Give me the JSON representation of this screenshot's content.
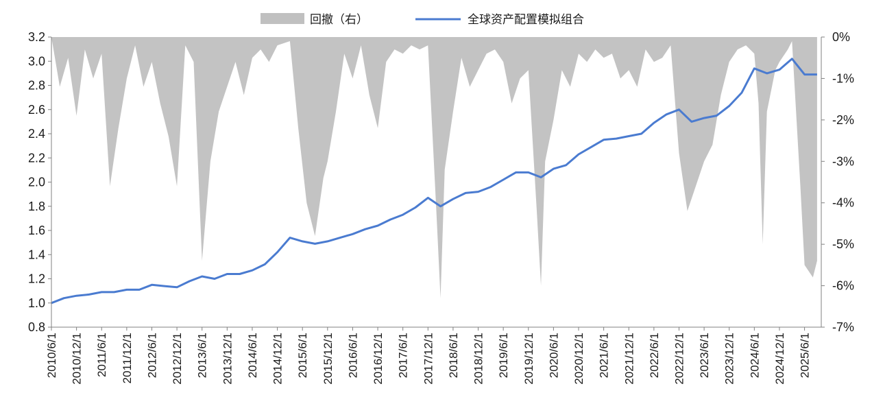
{
  "chart_data": {
    "type": "line",
    "legend": [
      {
        "name": "回撤（右）",
        "color": "#c0c0c0",
        "kind": "area"
      },
      {
        "name": "全球资产配置模拟组合",
        "color": "#4a7bd0",
        "kind": "line"
      }
    ],
    "y_left": {
      "ticks": [
        "3.2",
        "3.0",
        "2.8",
        "2.6",
        "2.4",
        "2.2",
        "2.0",
        "1.8",
        "1.6",
        "1.4",
        "1.2",
        "1.0",
        "0.8"
      ],
      "ylim": [
        0.8,
        3.2
      ]
    },
    "y_right": {
      "ticks": [
        "0%",
        "-1%",
        "-2%",
        "-3%",
        "-4%",
        "-5%",
        "-6%",
        "-7%"
      ],
      "ylim": [
        -7,
        0
      ]
    },
    "x_ticks": [
      "2010/6/1",
      "2010/12/1",
      "2011/6/1",
      "2011/12/1",
      "2012/6/1",
      "2012/12/1",
      "2013/6/1",
      "2013/12/1",
      "2014/6/1",
      "2014/12/1",
      "2015/6/1",
      "2015/12/1",
      "2016/6/1",
      "2016/12/1",
      "2017/6/1",
      "2017/12/1",
      "2018/6/1",
      "2018/12/1",
      "2019/6/1",
      "2019/12/1",
      "2020/6/1",
      "2020/12/1",
      "2021/6/1",
      "2021/12/1",
      "2022/6/1",
      "2022/12/1",
      "2023/6/1",
      "2023/12/1",
      "2024/6/1",
      "2024/12/1",
      "2025/6/1"
    ],
    "series": [
      {
        "name": "全球资产配置模拟组合",
        "axis": "left",
        "points": [
          [
            "2010/6/1",
            1.0
          ],
          [
            "2010/9/1",
            1.04
          ],
          [
            "2010/12/1",
            1.06
          ],
          [
            "2011/3/1",
            1.07
          ],
          [
            "2011/6/1",
            1.09
          ],
          [
            "2011/9/1",
            1.09
          ],
          [
            "2011/12/1",
            1.11
          ],
          [
            "2012/3/1",
            1.11
          ],
          [
            "2012/6/1",
            1.15
          ],
          [
            "2012/9/1",
            1.14
          ],
          [
            "2012/12/1",
            1.13
          ],
          [
            "2013/3/1",
            1.18
          ],
          [
            "2013/6/1",
            1.22
          ],
          [
            "2013/9/1",
            1.2
          ],
          [
            "2013/12/1",
            1.24
          ],
          [
            "2014/3/1",
            1.24
          ],
          [
            "2014/6/1",
            1.27
          ],
          [
            "2014/9/1",
            1.32
          ],
          [
            "2014/12/1",
            1.42
          ],
          [
            "2015/3/1",
            1.54
          ],
          [
            "2015/6/1",
            1.51
          ],
          [
            "2015/9/1",
            1.49
          ],
          [
            "2015/12/1",
            1.51
          ],
          [
            "2016/3/1",
            1.54
          ],
          [
            "2016/6/1",
            1.57
          ],
          [
            "2016/9/1",
            1.61
          ],
          [
            "2016/12/1",
            1.64
          ],
          [
            "2017/3/1",
            1.69
          ],
          [
            "2017/6/1",
            1.73
          ],
          [
            "2017/9/1",
            1.79
          ],
          [
            "2017/12/1",
            1.87
          ],
          [
            "2018/3/1",
            1.8
          ],
          [
            "2018/6/1",
            1.86
          ],
          [
            "2018/9/1",
            1.91
          ],
          [
            "2018/12/1",
            1.92
          ],
          [
            "2019/3/1",
            1.96
          ],
          [
            "2019/6/1",
            2.02
          ],
          [
            "2019/9/1",
            2.08
          ],
          [
            "2019/12/1",
            2.08
          ],
          [
            "2020/3/1",
            2.04
          ],
          [
            "2020/6/1",
            2.11
          ],
          [
            "2020/9/1",
            2.14
          ],
          [
            "2020/12/1",
            2.23
          ],
          [
            "2021/3/1",
            2.29
          ],
          [
            "2021/6/1",
            2.35
          ],
          [
            "2021/9/1",
            2.36
          ],
          [
            "2021/12/1",
            2.38
          ],
          [
            "2022/3/1",
            2.4
          ],
          [
            "2022/6/1",
            2.49
          ],
          [
            "2022/9/1",
            2.56
          ],
          [
            "2022/12/1",
            2.6
          ],
          [
            "2023/3/1",
            2.5
          ],
          [
            "2023/6/1",
            2.53
          ],
          [
            "2023/9/1",
            2.55
          ],
          [
            "2023/12/1",
            2.63
          ],
          [
            "2024/3/1",
            2.74
          ],
          [
            "2024/6/1",
            2.94
          ],
          [
            "2024/9/1",
            2.9
          ],
          [
            "2024/12/1",
            2.93
          ],
          [
            "2025/3/1",
            3.02
          ],
          [
            "2025/6/1",
            2.89
          ],
          [
            "2025/9/1",
            2.89
          ]
        ]
      },
      {
        "name": "回撤（右）",
        "axis": "right",
        "points": [
          [
            "2010/6/1",
            0
          ],
          [
            "2010/8/1",
            -1.2
          ],
          [
            "2010/10/1",
            -0.5
          ],
          [
            "2010/12/1",
            -1.9
          ],
          [
            "2011/2/1",
            -0.3
          ],
          [
            "2011/4/1",
            -1.0
          ],
          [
            "2011/6/1",
            -0.4
          ],
          [
            "2011/8/1",
            -3.6
          ],
          [
            "2011/10/1",
            -2.2
          ],
          [
            "2011/12/1",
            -1.0
          ],
          [
            "2012/2/1",
            -0.2
          ],
          [
            "2012/4/1",
            -1.2
          ],
          [
            "2012/6/1",
            -0.6
          ],
          [
            "2012/8/1",
            -1.6
          ],
          [
            "2012/10/1",
            -2.4
          ],
          [
            "2012/12/1",
            -3.6
          ],
          [
            "2013/2/1",
            -0.2
          ],
          [
            "2013/4/1",
            -0.6
          ],
          [
            "2013/6/1",
            -5.4
          ],
          [
            "2013/8/1",
            -3.0
          ],
          [
            "2013/10/1",
            -1.8
          ],
          [
            "2013/12/1",
            -1.2
          ],
          [
            "2014/2/1",
            -0.6
          ],
          [
            "2014/4/1",
            -1.4
          ],
          [
            "2014/6/1",
            -0.5
          ],
          [
            "2014/8/1",
            -0.3
          ],
          [
            "2014/10/1",
            -0.6
          ],
          [
            "2014/12/1",
            -0.2
          ],
          [
            "2015/3/1",
            -0.1
          ],
          [
            "2015/5/1",
            -2.2
          ],
          [
            "2015/7/1",
            -4.0
          ],
          [
            "2015/9/1",
            -4.8
          ],
          [
            "2015/11/1",
            -3.4
          ],
          [
            "2015/12/1",
            -3.0
          ],
          [
            "2016/2/1",
            -1.8
          ],
          [
            "2016/4/1",
            -0.4
          ],
          [
            "2016/6/1",
            -1.0
          ],
          [
            "2016/8/1",
            -0.2
          ],
          [
            "2016/10/1",
            -1.4
          ],
          [
            "2016/12/1",
            -2.2
          ],
          [
            "2017/2/1",
            -0.6
          ],
          [
            "2017/4/1",
            -0.3
          ],
          [
            "2017/6/1",
            -0.4
          ],
          [
            "2017/8/1",
            -0.2
          ],
          [
            "2017/10/1",
            -0.3
          ],
          [
            "2017/12/1",
            -0.2
          ],
          [
            "2018/2/1",
            -4.2
          ],
          [
            "2018/3/1",
            -6.3
          ],
          [
            "2018/4/1",
            -3.2
          ],
          [
            "2018/6/1",
            -1.8
          ],
          [
            "2018/8/1",
            -0.5
          ],
          [
            "2018/10/1",
            -1.2
          ],
          [
            "2018/12/1",
            -0.8
          ],
          [
            "2019/2/1",
            -0.4
          ],
          [
            "2019/4/1",
            -0.3
          ],
          [
            "2019/6/1",
            -0.6
          ],
          [
            "2019/8/1",
            -1.6
          ],
          [
            "2019/10/1",
            -1.0
          ],
          [
            "2019/12/1",
            -0.8
          ],
          [
            "2020/2/1",
            -4.2
          ],
          [
            "2020/3/1",
            -6.0
          ],
          [
            "2020/4/1",
            -3.0
          ],
          [
            "2020/6/1",
            -2.0
          ],
          [
            "2020/8/1",
            -0.8
          ],
          [
            "2020/10/1",
            -1.2
          ],
          [
            "2020/12/1",
            -0.4
          ],
          [
            "2021/2/1",
            -0.6
          ],
          [
            "2021/4/1",
            -0.3
          ],
          [
            "2021/6/1",
            -0.5
          ],
          [
            "2021/8/1",
            -0.4
          ],
          [
            "2021/10/1",
            -1.0
          ],
          [
            "2021/12/1",
            -0.8
          ],
          [
            "2022/2/1",
            -1.2
          ],
          [
            "2022/4/1",
            -0.3
          ],
          [
            "2022/6/1",
            -0.6
          ],
          [
            "2022/8/1",
            -0.5
          ],
          [
            "2022/10/1",
            -0.2
          ],
          [
            "2022/12/1",
            -2.8
          ],
          [
            "2023/2/1",
            -4.2
          ],
          [
            "2023/4/1",
            -3.6
          ],
          [
            "2023/6/1",
            -3.0
          ],
          [
            "2023/8/1",
            -2.6
          ],
          [
            "2023/10/1",
            -1.4
          ],
          [
            "2023/12/1",
            -0.6
          ],
          [
            "2024/2/1",
            -0.3
          ],
          [
            "2024/4/1",
            -0.2
          ],
          [
            "2024/6/1",
            -0.4
          ],
          [
            "2024/7/1",
            -1.6
          ],
          [
            "2024/8/1",
            -5.0
          ],
          [
            "2024/9/1",
            -1.8
          ],
          [
            "2024/11/1",
            -0.8
          ],
          [
            "2024/12/1",
            -0.6
          ],
          [
            "2025/2/1",
            -0.3
          ],
          [
            "2025/3/1",
            -0.1
          ],
          [
            "2025/5/1",
            -3.6
          ],
          [
            "2025/6/1",
            -5.5
          ],
          [
            "2025/8/1",
            -5.8
          ],
          [
            "2025/9/1",
            -5.4
          ]
        ]
      }
    ]
  }
}
